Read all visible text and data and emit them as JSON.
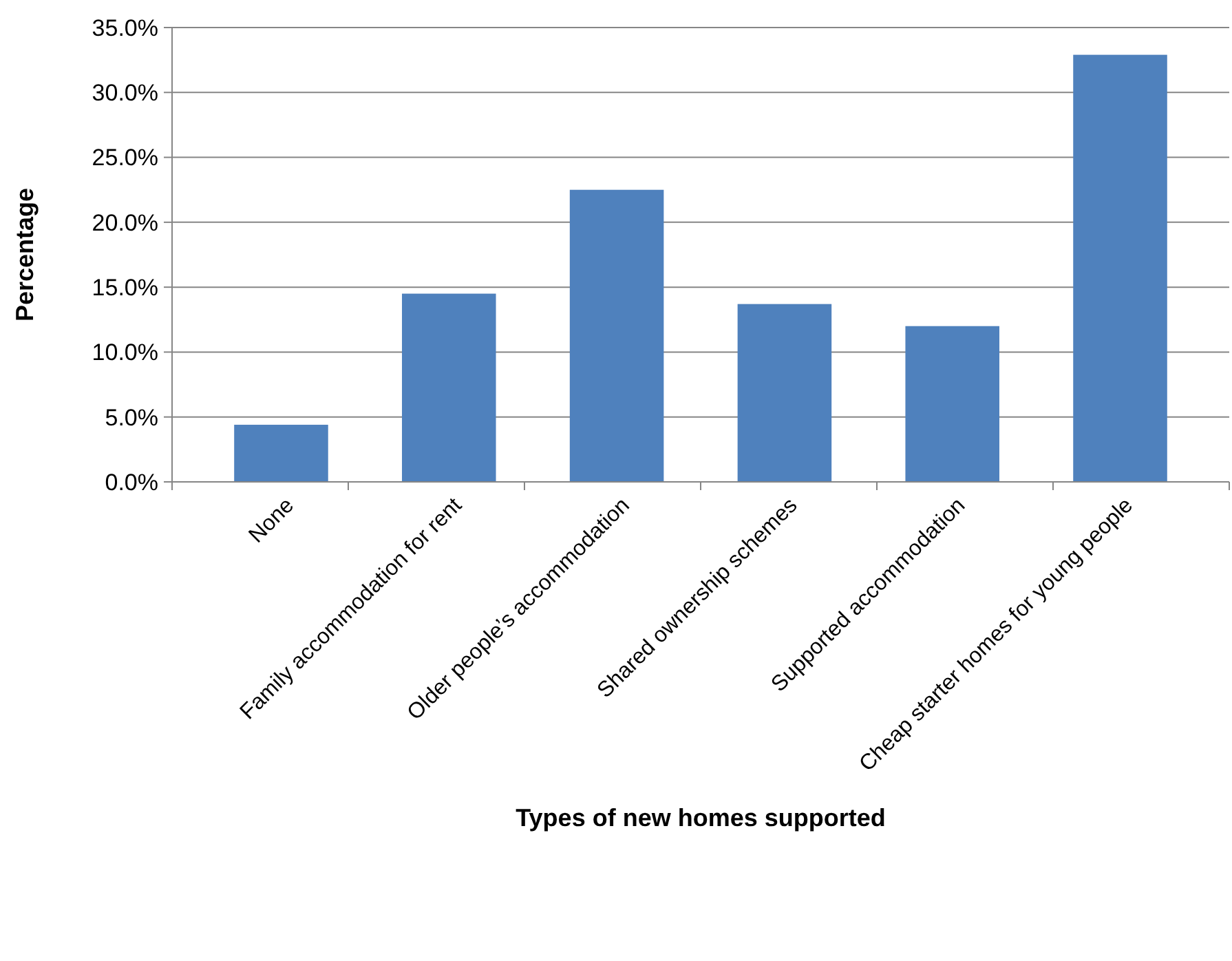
{
  "chart_data": {
    "type": "bar",
    "xlabel": "Types of new homes supported",
    "ylabel": "Percentage",
    "categories": [
      "None",
      "Family accommodation for rent",
      "Older people’s accommodation",
      "Shared ownership schemes",
      "Supported accommodation",
      "Cheap starter homes for young people"
    ],
    "values": [
      4.4,
      14.5,
      22.5,
      13.7,
      12.0,
      32.9
    ],
    "color": "#4f81bd",
    "ylim": [
      0,
      35
    ],
    "yticks": [
      {
        "value": 0,
        "label": "0.0%"
      },
      {
        "value": 5,
        "label": "5.0%"
      },
      {
        "value": 10,
        "label": "10.0%"
      },
      {
        "value": 15,
        "label": "15.0%"
      },
      {
        "value": 20,
        "label": "20.0%"
      },
      {
        "value": 25,
        "label": "25.0%"
      },
      {
        "value": 30,
        "label": "30.0%"
      },
      {
        "value": 35,
        "label": "35.0%"
      }
    ],
    "grid": "y"
  }
}
